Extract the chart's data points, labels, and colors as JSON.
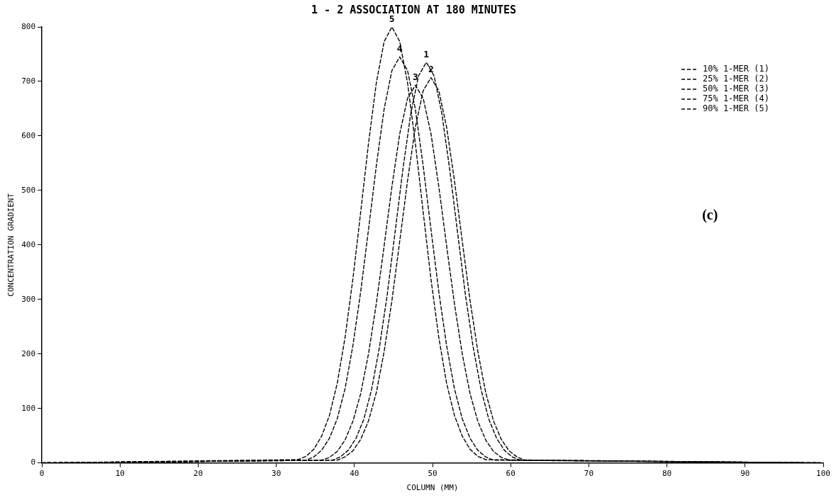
{
  "chart_data": {
    "type": "line",
    "title": "1 - 2 ASSOCIATION AT 180 MINUTES",
    "xlabel": "COLUMN (MM)",
    "ylabel": "CONCENTRATION GRADIENT",
    "xlim": [
      0,
      100
    ],
    "ylim": [
      0,
      800
    ],
    "xticks": [
      0,
      10,
      20,
      30,
      40,
      50,
      60,
      70,
      80,
      90,
      100
    ],
    "yticks": [
      0,
      100,
      200,
      300,
      400,
      500,
      600,
      700,
      800
    ],
    "grid": false,
    "legend": "top right",
    "marker": "none",
    "line_style": "dashed",
    "series": [
      {
        "name": "10% 1-MER (1)",
        "color": "#000000",
        "x": [
          0,
          37.2,
          38.2,
          39.2,
          40.2,
          41.2,
          42.2,
          43.2,
          44.2,
          45.2,
          46.2,
          47.2,
          48.2,
          49.2,
          50.2,
          51.2,
          52.2,
          53.2,
          54.2,
          55.2,
          56.2,
          57.2,
          58.2,
          59.2,
          60.2,
          61.2,
          100
        ],
        "values": [
          0,
          5,
          11,
          23,
          45,
          80,
          135,
          212,
          309,
          423,
          538,
          640,
          710,
          735,
          710,
          640,
          538,
          423,
          309,
          212,
          135,
          80,
          45,
          23,
          11,
          5,
          0
        ]
      },
      {
        "name": "25% 1-MER (2)",
        "color": "#000000",
        "x": [
          0,
          37.8,
          38.8,
          39.8,
          40.8,
          41.8,
          42.8,
          43.8,
          44.8,
          45.8,
          46.8,
          47.8,
          48.8,
          49.8,
          50.8,
          51.8,
          52.8,
          53.8,
          54.8,
          55.8,
          56.8,
          57.8,
          58.8,
          59.8,
          60.8,
          61.8,
          100
        ],
        "values": [
          0,
          5,
          11,
          22,
          43,
          77,
          129,
          204,
          298,
          407,
          518,
          616,
          683,
          707,
          683,
          616,
          518,
          407,
          298,
          204,
          129,
          77,
          43,
          22,
          11,
          5,
          0
        ]
      },
      {
        "name": "50% 1-MER (3)",
        "color": "#000000",
        "x": [
          0,
          35.8,
          36.8,
          37.8,
          38.8,
          39.8,
          40.8,
          41.8,
          42.8,
          43.8,
          44.8,
          45.8,
          46.8,
          47.8,
          48.8,
          49.8,
          50.8,
          51.8,
          52.8,
          53.8,
          54.8,
          55.8,
          56.8,
          57.8,
          58.8,
          59.8,
          100
        ],
        "values": [
          0,
          5,
          10,
          21,
          42,
          76,
          127,
          200,
          292,
          398,
          507,
          604,
          669,
          693,
          669,
          604,
          507,
          398,
          292,
          200,
          127,
          76,
          42,
          21,
          10,
          5,
          0
        ]
      },
      {
        "name": "75% 1-MER (4)",
        "color": "#000000",
        "x": [
          0,
          33.8,
          34.8,
          35.8,
          36.8,
          37.8,
          38.8,
          39.8,
          40.8,
          41.8,
          42.8,
          43.8,
          44.8,
          45.8,
          46.8,
          47.8,
          48.8,
          49.8,
          50.8,
          51.8,
          52.8,
          53.8,
          54.8,
          55.8,
          56.8,
          57.8,
          100
        ],
        "values": [
          0,
          5,
          11,
          23,
          45,
          81,
          136,
          215,
          314,
          428,
          545,
          649,
          720,
          745,
          720,
          649,
          545,
          428,
          314,
          215,
          136,
          81,
          45,
          23,
          11,
          5,
          0
        ]
      },
      {
        "name": "90% 1-MER (5)",
        "color": "#000000",
        "x": [
          0,
          32.8,
          33.8,
          34.8,
          35.8,
          36.8,
          37.8,
          38.8,
          39.8,
          40.8,
          41.8,
          42.8,
          43.8,
          44.8,
          45.8,
          46.8,
          47.8,
          48.8,
          49.8,
          50.8,
          51.8,
          52.8,
          53.8,
          54.8,
          55.8,
          56.8,
          100
        ],
        "values": [
          0,
          6,
          12,
          25,
          49,
          87,
          146,
          230,
          337,
          460,
          586,
          697,
          773,
          800,
          773,
          697,
          586,
          460,
          337,
          230,
          146,
          87,
          49,
          25,
          12,
          6,
          0
        ]
      }
    ],
    "annotations": [
      {
        "text": "1",
        "x": 49.2,
        "y": 735
      },
      {
        "text": "2",
        "x": 49.8,
        "y": 707
      },
      {
        "text": "3",
        "x": 47.8,
        "y": 693
      },
      {
        "text": "4",
        "x": 45.8,
        "y": 745
      },
      {
        "text": "5",
        "x": 44.8,
        "y": 800
      },
      "(c)"
    ]
  }
}
